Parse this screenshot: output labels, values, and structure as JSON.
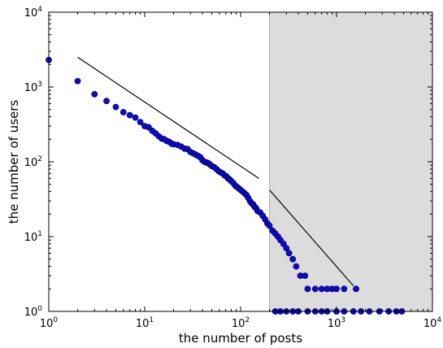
{
  "chart_data": {
    "type": "scatter",
    "title": "",
    "xlabel": "the number of posts",
    "ylabel": "the number of users",
    "xscale": "log",
    "yscale": "log",
    "xlim": [
      1,
      10000
    ],
    "ylim": [
      1,
      10000
    ],
    "grid": false,
    "legend": "none",
    "x_ticks": [
      {
        "base": "10",
        "exp": "0",
        "value": 1
      },
      {
        "base": "10",
        "exp": "1",
        "value": 10
      },
      {
        "base": "10",
        "exp": "2",
        "value": 100
      },
      {
        "base": "10",
        "exp": "3",
        "value": 1000
      },
      {
        "base": "10",
        "exp": "4",
        "value": 10000
      }
    ],
    "y_ticks": [
      {
        "base": "10",
        "exp": "0",
        "value": 1
      },
      {
        "base": "10",
        "exp": "1",
        "value": 10
      },
      {
        "base": "10",
        "exp": "2",
        "value": 100
      },
      {
        "base": "10",
        "exp": "3",
        "value": 1000
      },
      {
        "base": "10",
        "exp": "4",
        "value": 10000
      }
    ],
    "shaded_region": {
      "x_from": 200,
      "x_to": 10000,
      "color": "#dcdcdc"
    },
    "fit_lines": [
      {
        "x": [
          2,
          155
        ],
        "y": [
          2500,
          60
        ],
        "color": "#000000"
      },
      {
        "x": [
          200,
          1500
        ],
        "y": [
          42,
          2.2
        ],
        "color": "#000000"
      }
    ],
    "series": [
      {
        "marker_color": "#0a0ad2",
        "edge_color": "#000033",
        "points": [
          [
            1,
            2300
          ],
          [
            2,
            1200
          ],
          [
            3,
            800
          ],
          [
            4,
            650
          ],
          [
            5,
            540
          ],
          [
            6,
            460
          ],
          [
            7,
            420
          ],
          [
            8,
            390
          ],
          [
            9,
            340
          ],
          [
            10,
            300
          ],
          [
            11,
            290
          ],
          [
            12,
            260
          ],
          [
            13,
            240
          ],
          [
            14,
            220
          ],
          [
            15,
            205
          ],
          [
            16,
            200
          ],
          [
            17,
            190
          ],
          [
            18,
            185
          ],
          [
            19,
            175
          ],
          [
            20,
            172
          ],
          [
            22,
            168
          ],
          [
            24,
            160
          ],
          [
            26,
            150
          ],
          [
            28,
            148
          ],
          [
            30,
            135
          ],
          [
            32,
            130
          ],
          [
            34,
            125
          ],
          [
            36,
            120
          ],
          [
            38,
            115
          ],
          [
            40,
            105
          ],
          [
            42,
            100
          ],
          [
            44,
            98
          ],
          [
            46,
            96
          ],
          [
            48,
            92
          ],
          [
            50,
            88
          ],
          [
            53,
            85
          ],
          [
            56,
            80
          ],
          [
            59,
            75
          ],
          [
            62,
            72
          ],
          [
            65,
            70
          ],
          [
            68,
            66
          ],
          [
            71,
            64
          ],
          [
            74,
            60
          ],
          [
            77,
            58
          ],
          [
            80,
            55
          ],
          [
            84,
            52
          ],
          [
            88,
            48
          ],
          [
            92,
            46
          ],
          [
            96,
            44
          ],
          [
            100,
            42
          ],
          [
            105,
            40
          ],
          [
            110,
            38
          ],
          [
            115,
            36
          ],
          [
            120,
            33
          ],
          [
            125,
            30
          ],
          [
            130,
            28
          ],
          [
            135,
            27
          ],
          [
            140,
            25
          ],
          [
            145,
            24
          ],
          [
            150,
            22
          ],
          [
            160,
            21
          ],
          [
            170,
            19
          ],
          [
            180,
            17
          ],
          [
            190,
            15
          ],
          [
            200,
            14
          ],
          [
            215,
            12
          ],
          [
            230,
            11
          ],
          [
            245,
            10
          ],
          [
            260,
            9
          ],
          [
            280,
            8
          ],
          [
            300,
            7
          ],
          [
            320,
            6
          ],
          [
            350,
            5
          ],
          [
            380,
            4
          ],
          [
            420,
            3
          ],
          [
            470,
            3
          ],
          [
            500,
            2
          ],
          [
            600,
            2
          ],
          [
            700,
            2
          ],
          [
            800,
            2
          ],
          [
            900,
            2
          ],
          [
            1000,
            2
          ],
          [
            1200,
            2
          ],
          [
            1600,
            2
          ],
          [
            230,
            1
          ],
          [
            260,
            1
          ],
          [
            300,
            1
          ],
          [
            350,
            1
          ],
          [
            400,
            1
          ],
          [
            500,
            1
          ],
          [
            600,
            1
          ],
          [
            700,
            1
          ],
          [
            800,
            1
          ],
          [
            1000,
            1
          ],
          [
            1200,
            1
          ],
          [
            1500,
            1
          ],
          [
            1800,
            1
          ],
          [
            2200,
            1
          ],
          [
            2800,
            1
          ],
          [
            3500,
            1
          ],
          [
            4200,
            1
          ],
          [
            4800,
            1
          ]
        ]
      }
    ]
  }
}
